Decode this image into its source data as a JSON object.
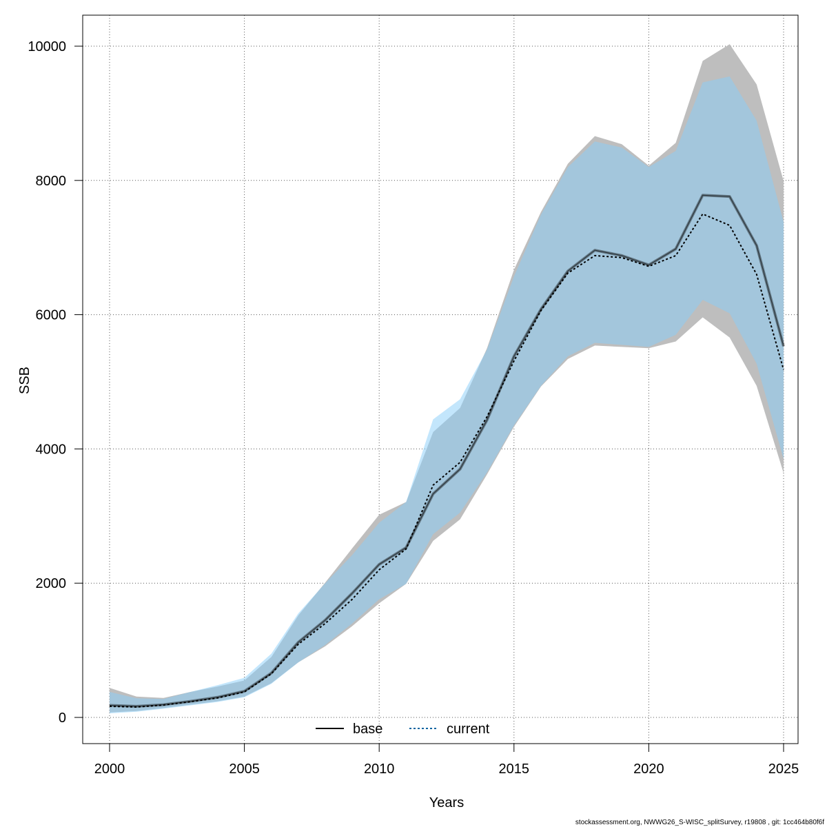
{
  "chart_data": {
    "type": "line",
    "title": "",
    "xlabel": "Years",
    "ylabel": "SSB",
    "xlim": [
      1999,
      2026
    ],
    "ylim": [
      -400,
      10400
    ],
    "x_ticks": [
      2000,
      2005,
      2010,
      2015,
      2020,
      2025
    ],
    "y_ticks": [
      0,
      2000,
      4000,
      6000,
      8000,
      10000
    ],
    "x_tick_labels": [
      "2000",
      "2005",
      "2010",
      "2015",
      "2020",
      "2025"
    ],
    "y_tick_labels": [
      "0",
      "2000",
      "4000",
      "6000",
      "8000",
      "10000"
    ],
    "grid": true,
    "legend_position": "bottom-center",
    "x": [
      2000,
      2001,
      2002,
      2003,
      2004,
      2005,
      2006,
      2007,
      2008,
      2009,
      2010,
      2011,
      2012,
      2013,
      2014,
      2015,
      2016,
      2017,
      2018,
      2019,
      2020,
      2021,
      2022,
      2023,
      2024,
      2025
    ],
    "series": [
      {
        "name": "base",
        "color": "#000000",
        "line_style": "solid",
        "band_color": "#bebebe",
        "values": [
          180,
          165,
          190,
          240,
          300,
          390,
          660,
          1120,
          1450,
          1850,
          2280,
          2530,
          3330,
          3700,
          4430,
          5380,
          6080,
          6650,
          6960,
          6880,
          6740,
          6980,
          7780,
          7760,
          7030,
          5530
        ],
        "lower": [
          75,
          95,
          140,
          190,
          240,
          310,
          510,
          820,
          1060,
          1360,
          1700,
          1990,
          2630,
          2950,
          3620,
          4330,
          4930,
          5340,
          5540,
          5520,
          5500,
          5600,
          5960,
          5660,
          4940,
          3640
        ],
        "upper": [
          440,
          310,
          290,
          380,
          460,
          550,
          900,
          1520,
          2010,
          2520,
          3020,
          3210,
          4250,
          4610,
          5500,
          6670,
          7530,
          8250,
          8660,
          8540,
          8220,
          8560,
          9780,
          10030,
          9430,
          7990
        ]
      },
      {
        "name": "current",
        "color": "#0063a0",
        "line_style": "dotted",
        "band_color": "#87cefa",
        "values": [
          165,
          155,
          185,
          235,
          290,
          380,
          650,
          1090,
          1400,
          1760,
          2200,
          2510,
          3460,
          3800,
          4480,
          5310,
          6060,
          6620,
          6880,
          6850,
          6720,
          6880,
          7500,
          7330,
          6600,
          5180
        ],
        "lower": [
          60,
          85,
          130,
          180,
          230,
          300,
          500,
          820,
          1080,
          1400,
          1760,
          1990,
          2730,
          3050,
          3650,
          4350,
          4940,
          5380,
          5580,
          5550,
          5520,
          5700,
          6220,
          6020,
          5270,
          3850
        ],
        "upper": [
          380,
          285,
          275,
          380,
          480,
          590,
          950,
          1550,
          2000,
          2420,
          2900,
          3210,
          4440,
          4740,
          5480,
          6570,
          7490,
          8200,
          8580,
          8490,
          8200,
          8440,
          9460,
          9550,
          8890,
          7380
        ]
      }
    ]
  },
  "footer": {
    "credit": "stockassessment.org, NWWG26_S-WISC_splitSurvey, r19808 , git: 1cc464b80f6f"
  }
}
